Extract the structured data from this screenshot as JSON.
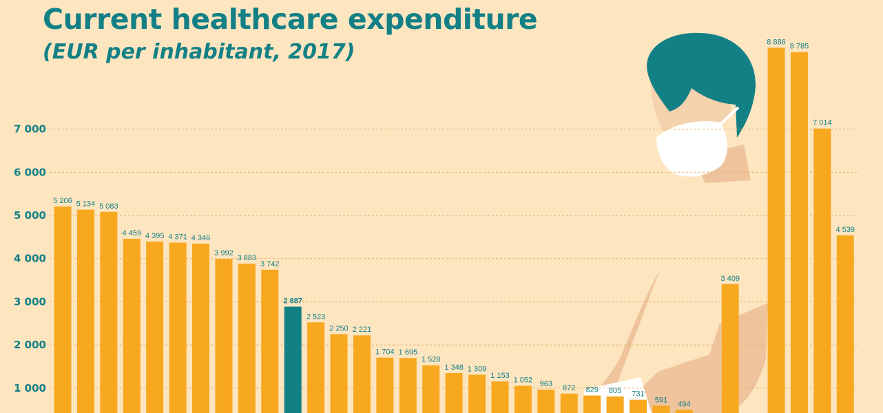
{
  "chart_data": {
    "type": "bar",
    "title": "Current healthcare expenditure",
    "subtitle": "(EUR per inhabitant, 2017)",
    "xlabel": "",
    "ylabel": "",
    "ylim": [
      0,
      7800
    ],
    "yticks": [
      1000,
      2000,
      3000,
      4000,
      5000,
      6000,
      7000
    ],
    "ytick_labels": [
      "1 000",
      "2 000",
      "3 000",
      "4 000",
      "5 000",
      "6 000",
      "7 000"
    ],
    "grid": true,
    "bar_color": "#f8a81f",
    "highlight_color": "#138086",
    "values": [
      5206,
      5134,
      5083,
      4459,
      4395,
      4371,
      4346,
      3992,
      3883,
      3742,
      2887,
      2523,
      2250,
      2221,
      1704,
      1695,
      1528,
      1348,
      1309,
      1153,
      1052,
      963,
      872,
      829,
      805,
      731,
      591,
      494,
      null,
      3409,
      null,
      8886,
      8785,
      7014,
      4539
    ],
    "value_labels": [
      "5 206",
      "5 134",
      "5 083",
      "4 459",
      "4 395",
      "4 371",
      "4 346",
      "3 992",
      "3 883",
      "3 742",
      "2 887",
      "2 523",
      "2 250",
      "2 221",
      "1 704",
      "1 695",
      "1 528",
      "1 348",
      "1 309",
      "1 153",
      "1 052",
      "963",
      "872",
      "829",
      "805",
      "731",
      "591",
      "494",
      "",
      "3 409",
      "",
      "8 886",
      "8 785",
      "7 014",
      "4 539"
    ],
    "highlight_index": 10
  }
}
